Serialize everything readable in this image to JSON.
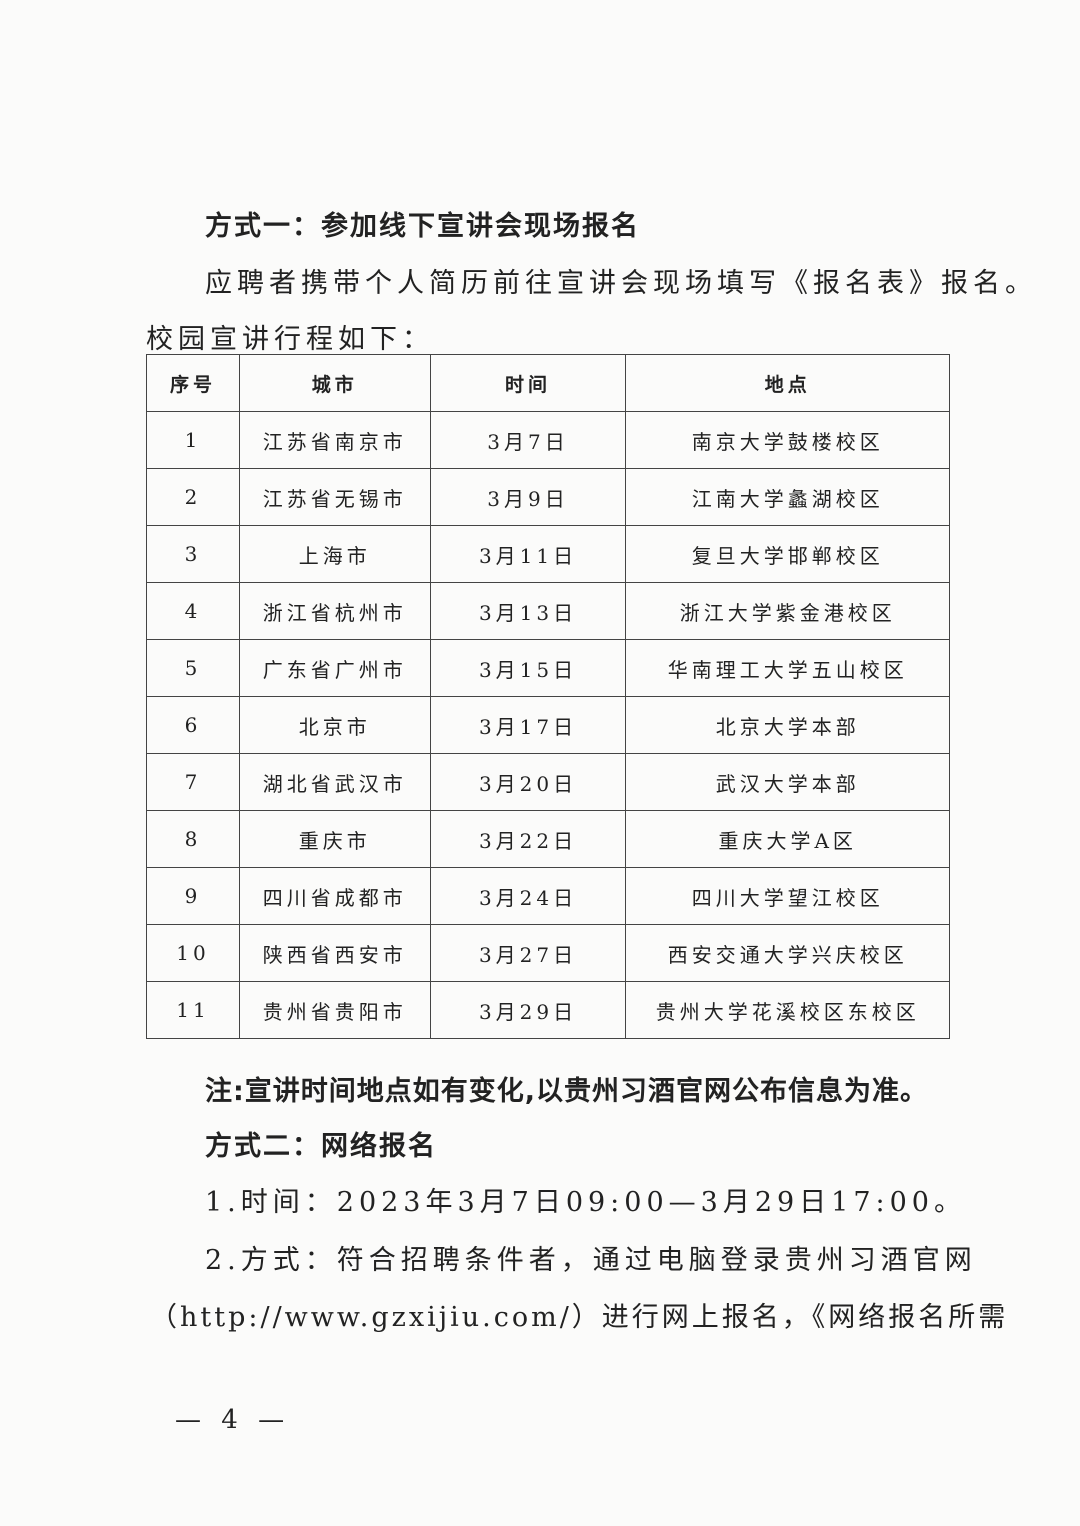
{
  "section1": {
    "heading": "方式一：参加线下宣讲会现场报名",
    "para1": "应聘者携带个人简历前往宣讲会现场填写《报名表》报名。",
    "para2": "校园宣讲行程如下："
  },
  "table": {
    "headers": [
      "序号",
      "城市",
      "时间",
      "地点"
    ],
    "rows": [
      [
        "1",
        "江苏省南京市",
        "3月7日",
        "南京大学鼓楼校区"
      ],
      [
        "2",
        "江苏省无锡市",
        "3月9日",
        "江南大学蠡湖校区"
      ],
      [
        "3",
        "上海市",
        "3月11日",
        "复旦大学邯郸校区"
      ],
      [
        "4",
        "浙江省杭州市",
        "3月13日",
        "浙江大学紫金港校区"
      ],
      [
        "5",
        "广东省广州市",
        "3月15日",
        "华南理工大学五山校区"
      ],
      [
        "6",
        "北京市",
        "3月17日",
        "北京大学本部"
      ],
      [
        "7",
        "湖北省武汉市",
        "3月20日",
        "武汉大学本部"
      ],
      [
        "8",
        "重庆市",
        "3月22日",
        "重庆大学A区"
      ],
      [
        "9",
        "四川省成都市",
        "3月24日",
        "四川大学望江校区"
      ],
      [
        "10",
        "陕西省西安市",
        "3月27日",
        "西安交通大学兴庆校区"
      ],
      [
        "11",
        "贵州省贵阳市",
        "3月29日",
        "贵州大学花溪校区东校区"
      ]
    ]
  },
  "note": "注:宣讲时间地点如有变化,以贵州习酒官网公布信息为准。",
  "section2": {
    "heading": "方式二：网络报名",
    "item1": "1.时间：2023年3月7日09:00—3月29日17:00。",
    "item2_line1": "2.方式：符合招聘条件者，通过电脑登录贵州习酒官网",
    "item2_line2": "（http://www.gzxijiu.com/）进行网上报名，《网络报名所需"
  },
  "page_number": "— 4 —"
}
